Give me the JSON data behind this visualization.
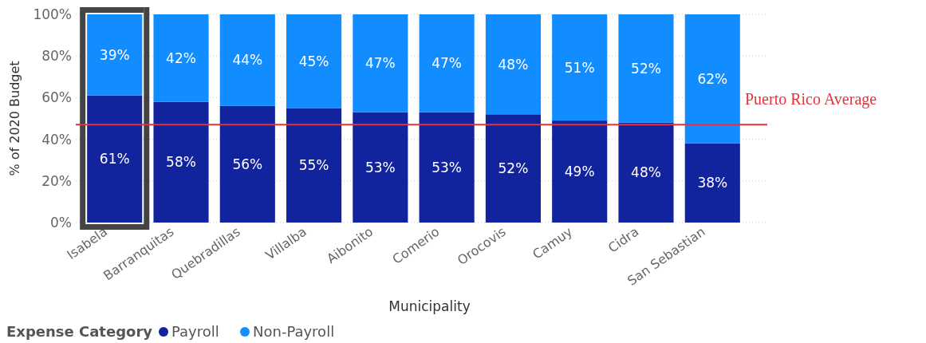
{
  "chart_data": {
    "type": "bar",
    "stacked": true,
    "xlabel": "Municipality",
    "ylabel": "% of 2020 Budget",
    "legend_title": "Expense Category",
    "legend": "bottom left",
    "grid": "y",
    "categories": [
      "Isabela",
      "Barranquitas",
      "Quebradillas",
      "Villalba",
      "Aibonito",
      "Comerio",
      "Orocovis",
      "Camuy",
      "Cidra",
      "San Sebastian"
    ],
    "series": [
      {
        "name": "Payroll",
        "color": "#12239e",
        "values": [
          61,
          58,
          56,
          55,
          53,
          53,
          52,
          49,
          48,
          38
        ],
        "value_labels": [
          "61%",
          "58%",
          "56%",
          "55%",
          "53%",
          "53%",
          "52%",
          "49%",
          "48%",
          "38%"
        ]
      },
      {
        "name": "Non-Payroll",
        "color": "#118dff",
        "values": [
          39,
          42,
          44,
          45,
          47,
          47,
          48,
          51,
          52,
          62
        ],
        "value_labels": [
          "39%",
          "42%",
          "44%",
          "45%",
          "47%",
          "47%",
          "48%",
          "51%",
          "52%",
          "62%"
        ]
      }
    ],
    "ylim": [
      0,
      100
    ],
    "yticks": [
      {
        "value": 0,
        "label": "0%"
      },
      {
        "value": 20,
        "label": "20%"
      },
      {
        "value": 40,
        "label": "40%"
      },
      {
        "value": 60,
        "label": "60%"
      },
      {
        "value": 80,
        "label": "80%"
      },
      {
        "value": 100,
        "label": "100%"
      }
    ],
    "ref_lines": [
      {
        "axis": "y",
        "value": 47,
        "label": "Puerto Rico Average",
        "color": "#e8313b"
      }
    ]
  }
}
